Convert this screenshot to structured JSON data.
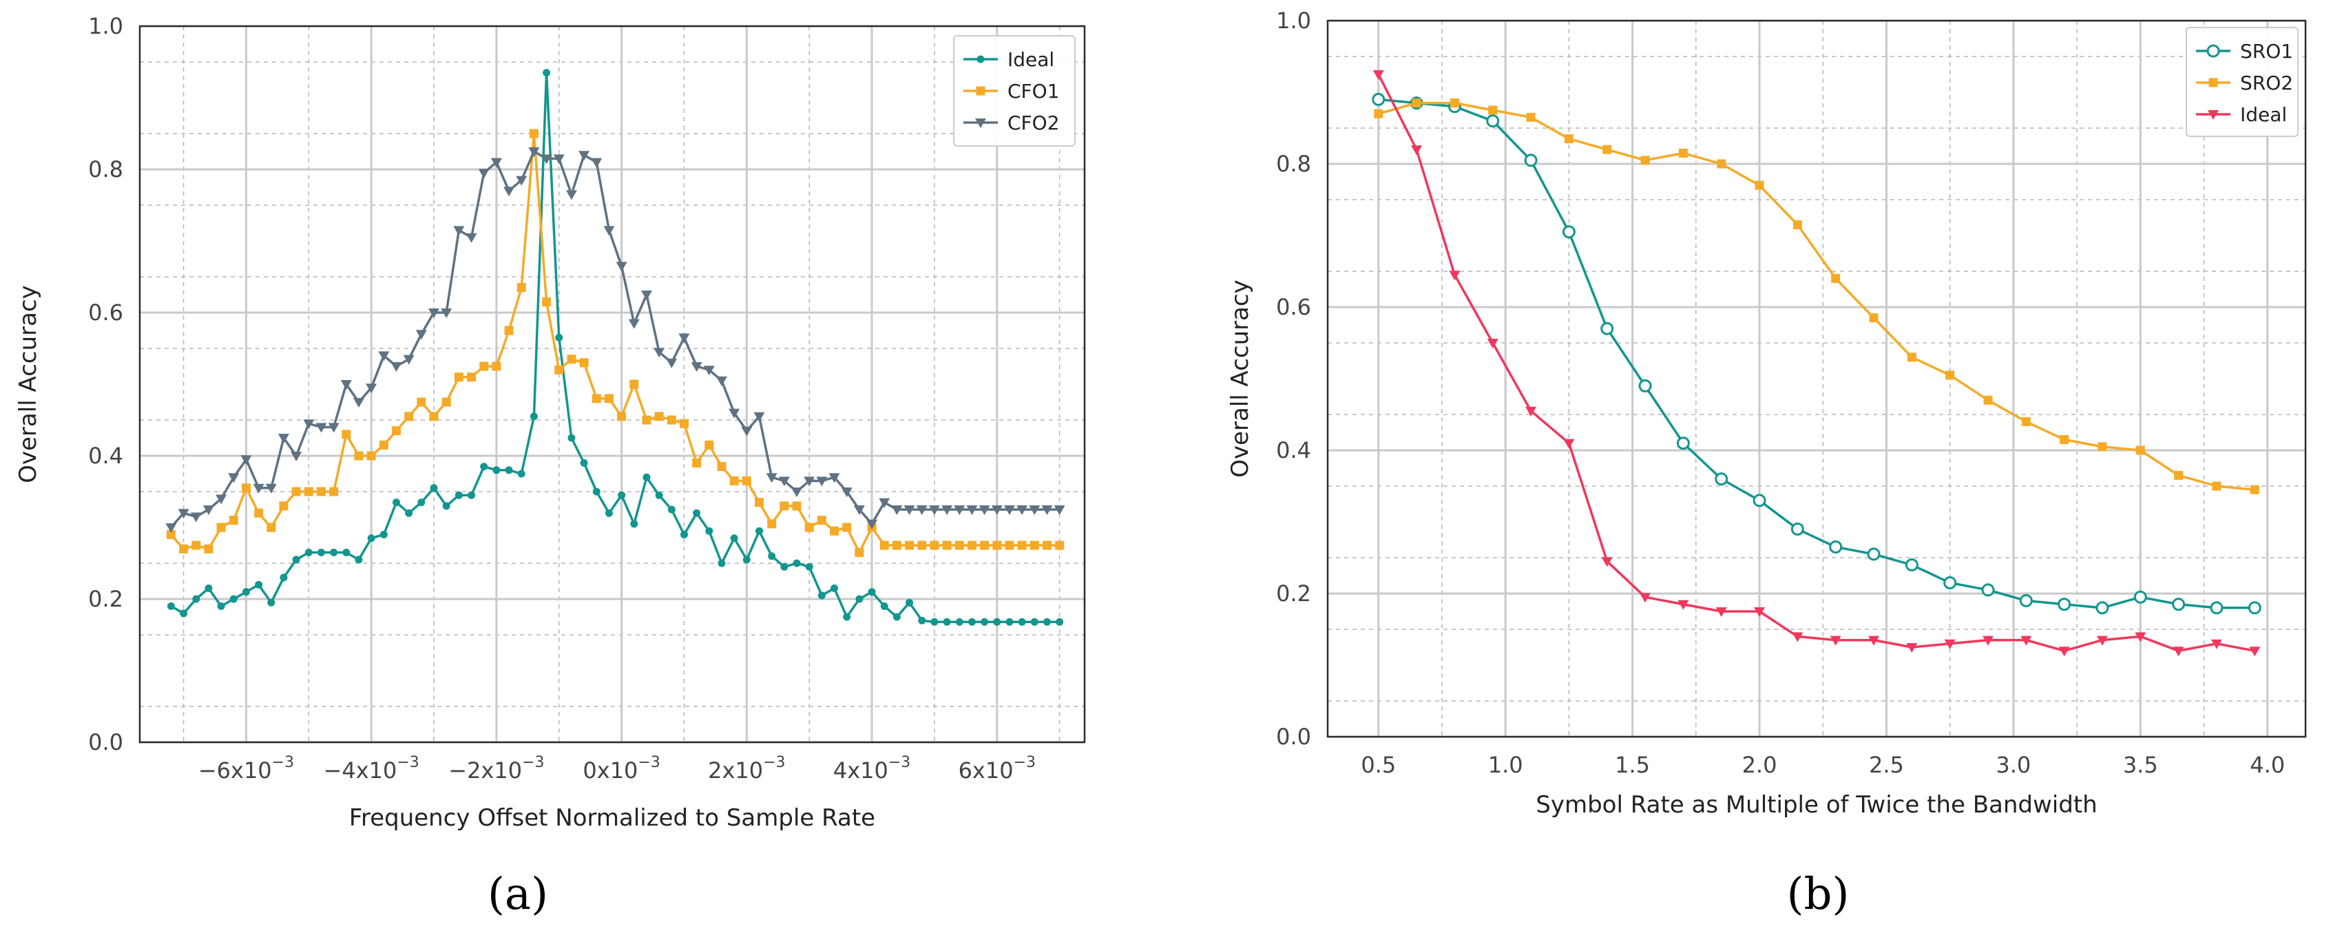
{
  "chart_data": [
    {
      "type": "line",
      "caption": "(a)",
      "xlabel": "Frequency Offset Normalized to Sample Rate",
      "ylabel": "Overall Accuracy",
      "xlim": [
        -0.0077,
        0.0074
      ],
      "ylim": [
        0,
        1.0
      ],
      "xticks": [
        -0.006,
        -0.004,
        -0.002,
        0,
        0.002,
        0.004,
        0.006
      ],
      "xtick_labels": [
        {
          "base": "−6x10",
          "exp": "−3"
        },
        {
          "base": "−4x10",
          "exp": "−3"
        },
        {
          "base": "−2x10",
          "exp": "−3"
        },
        {
          "base": "0x10",
          "exp": "−3"
        },
        {
          "base": "2x10",
          "exp": "−3"
        },
        {
          "base": "4x10",
          "exp": "−3"
        },
        {
          "base": "6x10",
          "exp": "−3"
        }
      ],
      "yticks": [
        0.0,
        0.2,
        0.4,
        0.6,
        0.8,
        1.0
      ],
      "ytick_labels": [
        "0.0",
        "0.2",
        "0.4",
        "0.6",
        "0.8",
        "1.0"
      ],
      "grid": true,
      "legend_position": "top-right",
      "x": [
        -0.0072,
        -0.007,
        -0.0068,
        -0.0066,
        -0.0064,
        -0.0062,
        -0.006,
        -0.0058,
        -0.0056,
        -0.0054,
        -0.0052,
        -0.005,
        -0.0048,
        -0.0046,
        -0.0044,
        -0.0042,
        -0.004,
        -0.0038,
        -0.0036,
        -0.0034,
        -0.0032,
        -0.003,
        -0.0028,
        -0.0026,
        -0.0024,
        -0.0022,
        -0.002,
        -0.0018,
        -0.0016,
        -0.0014,
        -0.0012,
        -0.001,
        -0.0008,
        -0.0006,
        -0.0004,
        -0.0002,
        0,
        0.0002,
        0.0004,
        0.0006,
        0.0008,
        0.001,
        0.0012,
        0.0014,
        0.0016,
        0.0018,
        0.002,
        0.0022,
        0.0024,
        0.0026,
        0.0028,
        0.003,
        0.0032,
        0.0034,
        0.0036,
        0.0038,
        0.004,
        0.0042,
        0.0044,
        0.0046,
        0.0048,
        0.005,
        0.0052,
        0.0054,
        0.0056,
        0.0058,
        0.006,
        0.0062,
        0.0064,
        0.0066,
        0.0068,
        0.007
      ],
      "series": [
        {
          "name": "Ideal",
          "color": "#12968f",
          "marker": "dot",
          "values": [
            0.19,
            0.18,
            0.2,
            0.215,
            0.19,
            0.2,
            0.21,
            0.22,
            0.195,
            0.23,
            0.255,
            0.265,
            0.265,
            0.265,
            0.265,
            0.255,
            0.285,
            0.29,
            0.335,
            0.32,
            0.335,
            0.355,
            0.33,
            0.345,
            0.345,
            0.385,
            0.38,
            0.38,
            0.375,
            0.455,
            0.935,
            0.565,
            0.425,
            0.39,
            0.35,
            0.32,
            0.345,
            0.305,
            0.37,
            0.345,
            0.325,
            0.29,
            0.32,
            0.295,
            0.25,
            0.285,
            0.255,
            0.295,
            0.26,
            0.245,
            0.25,
            0.245,
            0.205,
            0.215,
            0.175,
            0.2,
            0.21,
            0.19,
            0.175,
            0.195,
            0.17,
            0.168,
            0.168,
            0.168,
            0.168,
            0.168,
            0.168,
            0.168,
            0.168,
            0.168,
            0.168,
            0.168
          ]
        },
        {
          "name": "CFO1",
          "color": "#f5aa27",
          "marker": "square",
          "values": [
            0.29,
            0.27,
            0.275,
            0.27,
            0.3,
            0.31,
            0.355,
            0.32,
            0.3,
            0.33,
            0.35,
            0.35,
            0.35,
            0.35,
            0.43,
            0.4,
            0.4,
            0.415,
            0.435,
            0.455,
            0.475,
            0.455,
            0.475,
            0.51,
            0.51,
            0.525,
            0.525,
            0.575,
            0.635,
            0.85,
            0.615,
            0.52,
            0.535,
            0.53,
            0.48,
            0.48,
            0.455,
            0.5,
            0.45,
            0.455,
            0.45,
            0.445,
            0.39,
            0.415,
            0.385,
            0.365,
            0.365,
            0.335,
            0.305,
            0.33,
            0.33,
            0.3,
            0.31,
            0.295,
            0.3,
            0.265,
            0.3,
            0.275,
            0.275,
            0.275,
            0.275,
            0.275,
            0.275,
            0.275,
            0.275,
            0.275,
            0.275,
            0.275,
            0.275,
            0.275,
            0.275,
            0.275
          ]
        },
        {
          "name": "CFO2",
          "color": "#5f7282",
          "marker": "triangle",
          "values": [
            0.3,
            0.32,
            0.315,
            0.325,
            0.34,
            0.37,
            0.395,
            0.355,
            0.355,
            0.425,
            0.4,
            0.445,
            0.44,
            0.44,
            0.5,
            0.475,
            0.495,
            0.54,
            0.525,
            0.535,
            0.57,
            0.6,
            0.6,
            0.715,
            0.705,
            0.795,
            0.81,
            0.77,
            0.785,
            0.825,
            0.815,
            0.815,
            0.765,
            0.82,
            0.81,
            0.715,
            0.665,
            0.585,
            0.625,
            0.545,
            0.53,
            0.565,
            0.525,
            0.52,
            0.505,
            0.46,
            0.435,
            0.455,
            0.37,
            0.365,
            0.35,
            0.365,
            0.365,
            0.37,
            0.35,
            0.325,
            0.305,
            0.335,
            0.325,
            0.325,
            0.325,
            0.325,
            0.325,
            0.325,
            0.325,
            0.325,
            0.325,
            0.325,
            0.325,
            0.325,
            0.325,
            0.325
          ]
        }
      ]
    },
    {
      "type": "line",
      "caption": "(b)",
      "xlabel": "Symbol Rate as Multiple of Twice the Bandwidth",
      "ylabel": "Overall Accuracy",
      "xlim": [
        0.3,
        4.15
      ],
      "ylim": [
        0,
        1.0
      ],
      "xticks": [
        0.5,
        1.0,
        1.5,
        2.0,
        2.5,
        3.0,
        3.5,
        4.0
      ],
      "xtick_labels": [
        "0.5",
        "1.0",
        "1.5",
        "2.0",
        "2.5",
        "3.0",
        "3.5",
        "4.0"
      ],
      "yticks": [
        0.0,
        0.2,
        0.4,
        0.6,
        0.8,
        1.0
      ],
      "ytick_labels": [
        "0.0",
        "0.2",
        "0.4",
        "0.6",
        "0.8",
        "1.0"
      ],
      "grid": true,
      "legend_position": "top-right",
      "x": [
        0.5,
        0.65,
        0.8,
        0.95,
        1.1,
        1.25,
        1.4,
        1.55,
        1.7,
        1.85,
        2.0,
        2.15,
        2.3,
        2.45,
        2.6,
        2.75,
        2.9,
        3.05,
        3.2,
        3.35,
        3.5,
        3.65,
        3.8,
        3.95
      ],
      "series": [
        {
          "name": "SRO1",
          "color": "#12968f",
          "marker": "circle",
          "values": [
            0.89,
            0.885,
            0.88,
            0.86,
            0.805,
            0.705,
            0.57,
            0.49,
            0.41,
            0.36,
            0.33,
            0.29,
            0.265,
            0.255,
            0.24,
            0.215,
            0.205,
            0.19,
            0.185,
            0.18,
            0.195,
            0.185,
            0.18,
            0.18
          ]
        },
        {
          "name": "SRO2",
          "color": "#f5aa27",
          "marker": "square",
          "values": [
            0.87,
            0.885,
            0.885,
            0.875,
            0.865,
            0.835,
            0.82,
            0.805,
            0.815,
            0.8,
            0.77,
            0.715,
            0.64,
            0.585,
            0.53,
            0.505,
            0.47,
            0.44,
            0.415,
            0.405,
            0.4,
            0.365,
            0.35,
            0.345
          ]
        },
        {
          "name": "Ideal",
          "color": "#f0375c",
          "marker": "triangle",
          "values": [
            0.925,
            0.82,
            0.645,
            0.55,
            0.455,
            0.41,
            0.245,
            0.195,
            0.185,
            0.175,
            0.175,
            0.14,
            0.135,
            0.135,
            0.125,
            0.13,
            0.135,
            0.135,
            0.12,
            0.135,
            0.14,
            0.12,
            0.13,
            0.12
          ]
        }
      ]
    }
  ]
}
